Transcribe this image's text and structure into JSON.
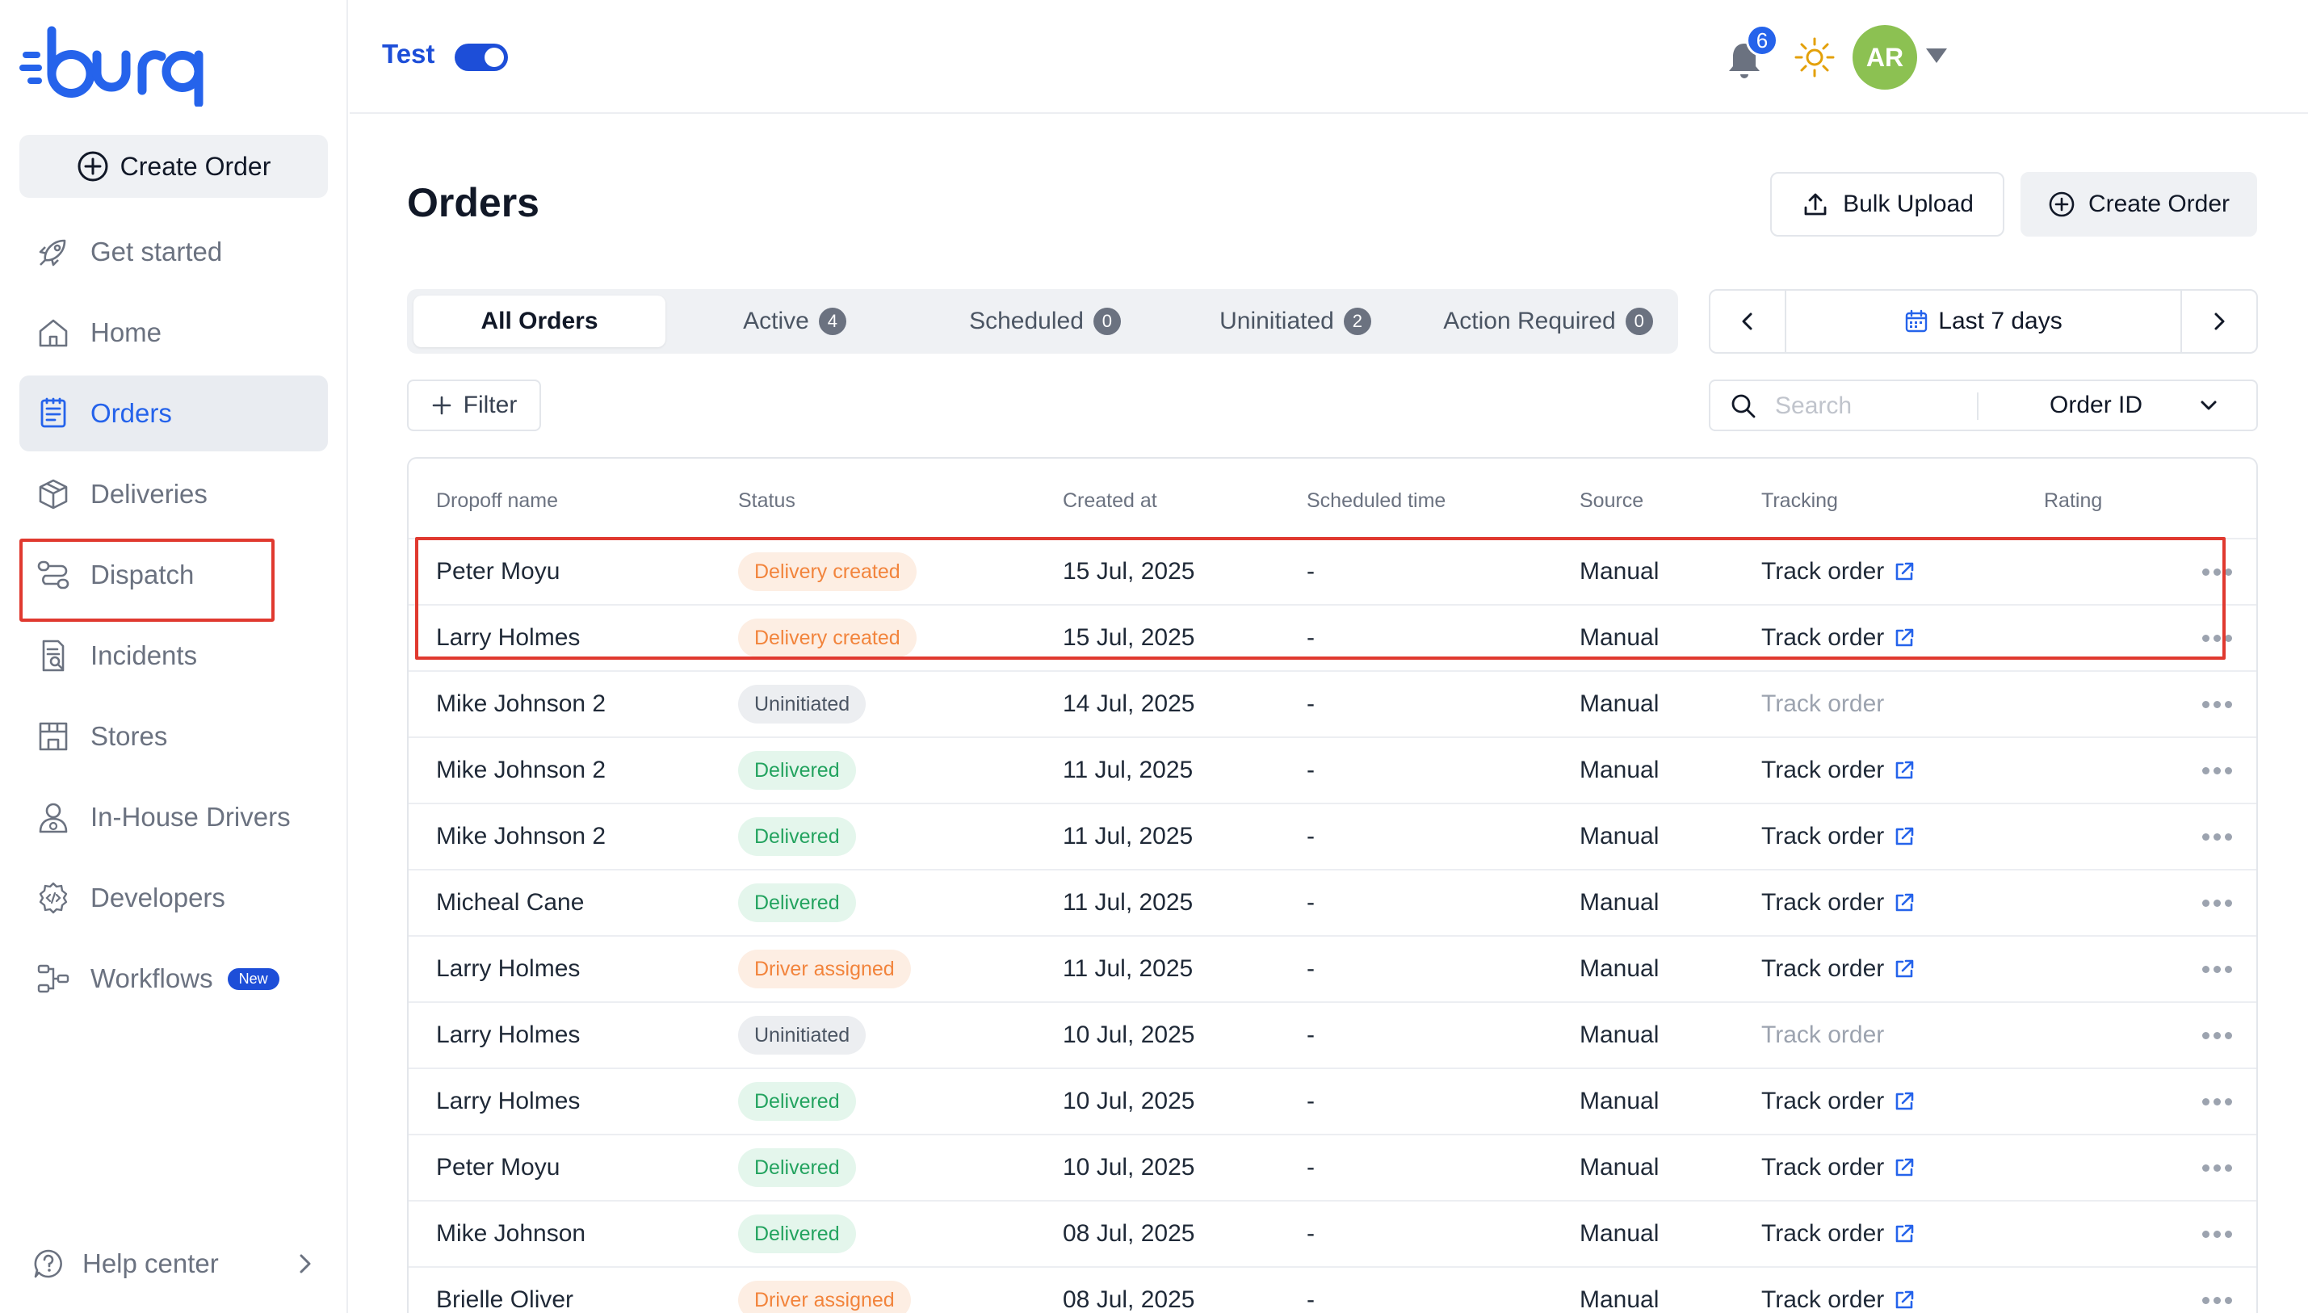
{
  "app": {
    "brand": "burq",
    "brand_color": "#2563eb"
  },
  "sidebar": {
    "create_order_label": "Create Order",
    "items": [
      {
        "label": "Get started",
        "icon": "rocket-icon"
      },
      {
        "label": "Home",
        "icon": "home-icon"
      },
      {
        "label": "Orders",
        "icon": "orders-icon",
        "active": true
      },
      {
        "label": "Deliveries",
        "icon": "package-icon"
      },
      {
        "label": "Dispatch",
        "icon": "route-icon",
        "highlighted": true
      },
      {
        "label": "Incidents",
        "icon": "report-icon"
      },
      {
        "label": "Stores",
        "icon": "store-icon"
      },
      {
        "label": "In-House Drivers",
        "icon": "driver-icon"
      },
      {
        "label": "Developers",
        "icon": "code-gear-icon"
      },
      {
        "label": "Workflows",
        "icon": "workflow-icon",
        "badge": "New"
      }
    ],
    "help_label": "Help center"
  },
  "topbar": {
    "mode_label": "Test",
    "mode_on": true,
    "notification_count": "6",
    "avatar_initials": "AR",
    "avatar_color": "#8cc152"
  },
  "main": {
    "title": "Orders",
    "bulk_upload_label": "Bulk Upload",
    "create_order_label": "Create Order",
    "tabs": [
      {
        "label": "All Orders",
        "active": true
      },
      {
        "label": "Active",
        "count": "4"
      },
      {
        "label": "Scheduled",
        "count": "0"
      },
      {
        "label": "Uninitiated",
        "count": "2"
      },
      {
        "label": "Action Required",
        "count": "0"
      }
    ],
    "date_range_label": "Last 7 days",
    "filter_label": "Filter",
    "search_placeholder": "Search",
    "search_field_selected": "Order ID"
  },
  "table": {
    "columns": [
      "Dropoff name",
      "Status",
      "Created at",
      "Scheduled time",
      "Source",
      "Tracking",
      "Rating"
    ],
    "status_colors": {
      "Delivery created": {
        "bg": "#fdeee3",
        "fg": "#f2843c"
      },
      "Driver assigned": {
        "bg": "#fdeee3",
        "fg": "#f2843c"
      },
      "Uninitiated": {
        "bg": "#eceef1",
        "fg": "#4b5563"
      },
      "Delivered": {
        "bg": "#e4f6ec",
        "fg": "#23a35f"
      }
    },
    "rows": [
      {
        "name": "Peter Moyu",
        "status": "Delivery created",
        "created": "15 Jul, 2025",
        "scheduled": "-",
        "source": "Manual",
        "tracking": "Track order",
        "tracking_enabled": true
      },
      {
        "name": "Larry Holmes",
        "status": "Delivery created",
        "created": "15 Jul, 2025",
        "scheduled": "-",
        "source": "Manual",
        "tracking": "Track order",
        "tracking_enabled": true
      },
      {
        "name": "Mike Johnson 2",
        "status": "Uninitiated",
        "created": "14 Jul, 2025",
        "scheduled": "-",
        "source": "Manual",
        "tracking": "Track order",
        "tracking_enabled": false
      },
      {
        "name": "Mike Johnson 2",
        "status": "Delivered",
        "created": "11 Jul, 2025",
        "scheduled": "-",
        "source": "Manual",
        "tracking": "Track order",
        "tracking_enabled": true
      },
      {
        "name": "Mike Johnson 2",
        "status": "Delivered",
        "created": "11 Jul, 2025",
        "scheduled": "-",
        "source": "Manual",
        "tracking": "Track order",
        "tracking_enabled": true
      },
      {
        "name": "Micheal Cane",
        "status": "Delivered",
        "created": "11 Jul, 2025",
        "scheduled": "-",
        "source": "Manual",
        "tracking": "Track order",
        "tracking_enabled": true
      },
      {
        "name": "Larry Holmes",
        "status": "Driver assigned",
        "created": "11 Jul, 2025",
        "scheduled": "-",
        "source": "Manual",
        "tracking": "Track order",
        "tracking_enabled": true
      },
      {
        "name": "Larry Holmes",
        "status": "Uninitiated",
        "created": "10 Jul, 2025",
        "scheduled": "-",
        "source": "Manual",
        "tracking": "Track order",
        "tracking_enabled": false
      },
      {
        "name": "Larry Holmes",
        "status": "Delivered",
        "created": "10 Jul, 2025",
        "scheduled": "-",
        "source": "Manual",
        "tracking": "Track order",
        "tracking_enabled": true
      },
      {
        "name": "Peter Moyu",
        "status": "Delivered",
        "created": "10 Jul, 2025",
        "scheduled": "-",
        "source": "Manual",
        "tracking": "Track order",
        "tracking_enabled": true
      },
      {
        "name": "Mike Johnson",
        "status": "Delivered",
        "created": "08 Jul, 2025",
        "scheduled": "-",
        "source": "Manual",
        "tracking": "Track order",
        "tracking_enabled": true
      },
      {
        "name": "Brielle Oliver",
        "status": "Driver assigned",
        "created": "08 Jul, 2025",
        "scheduled": "-",
        "source": "Manual",
        "tracking": "Track order",
        "tracking_enabled": true
      }
    ],
    "highlight_color": "#e0392f"
  }
}
